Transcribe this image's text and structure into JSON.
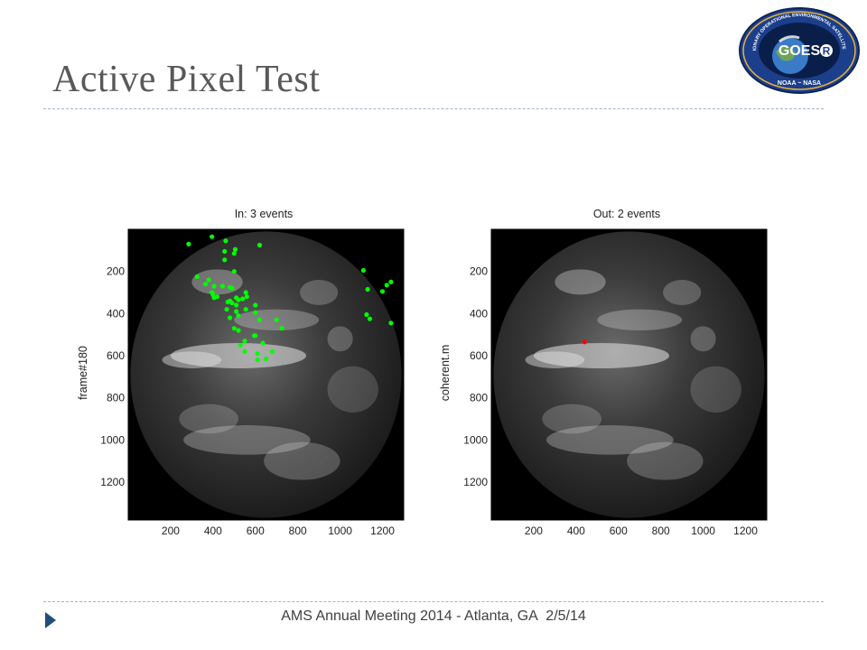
{
  "slide": {
    "title": "Active Pixel Test",
    "footer_meeting": "AMS Annual Meeting 2014 - Atlanta, GA",
    "footer_date": "2/5/14",
    "accent_color": "#1f4e79"
  },
  "logo": {
    "outer_text": "GEOSTATIONARY OPERATIONAL ENVIRONMENTAL SATELLITE R-SERIES",
    "center_text": "GOES",
    "center_suffix": "R",
    "bottom_text": "NOAA ~ NASA"
  },
  "chart_data": [
    {
      "type": "scatter",
      "title": "In: 3 events",
      "ylabel": "frame#180",
      "xlabel": "",
      "x_ticks": [
        "200",
        "400",
        "600",
        "800",
        "1000",
        "1200"
      ],
      "y_ticks": [
        "200",
        "400",
        "600",
        "800",
        "1000",
        "1200"
      ],
      "background": "earth disk image",
      "marker_color": "#00ff00",
      "points": [
        [
          395,
          35
        ],
        [
          460,
          55
        ],
        [
          285,
          70
        ],
        [
          620,
          75
        ],
        [
          455,
          105
        ],
        [
          505,
          95
        ],
        [
          500,
          115
        ],
        [
          455,
          145
        ],
        [
          500,
          200
        ],
        [
          325,
          225
        ],
        [
          380,
          240
        ],
        [
          365,
          260
        ],
        [
          405,
          270
        ],
        [
          445,
          270
        ],
        [
          490,
          280
        ],
        [
          480,
          275
        ],
        [
          555,
          300
        ],
        [
          395,
          300
        ],
        [
          400,
          310
        ],
        [
          405,
          325
        ],
        [
          420,
          320
        ],
        [
          470,
          345
        ],
        [
          480,
          340
        ],
        [
          510,
          325
        ],
        [
          520,
          335
        ],
        [
          490,
          350
        ],
        [
          510,
          360
        ],
        [
          540,
          330
        ],
        [
          560,
          320
        ],
        [
          600,
          360
        ],
        [
          465,
          380
        ],
        [
          510,
          390
        ],
        [
          555,
          380
        ],
        [
          600,
          395
        ],
        [
          520,
          410
        ],
        [
          480,
          420
        ],
        [
          620,
          430
        ],
        [
          700,
          430
        ],
        [
          725,
          470
        ],
        [
          500,
          470
        ],
        [
          520,
          480
        ],
        [
          600,
          505
        ],
        [
          550,
          530
        ],
        [
          530,
          550
        ],
        [
          550,
          580
        ],
        [
          610,
          590
        ],
        [
          680,
          580
        ],
        [
          650,
          615
        ],
        [
          610,
          620
        ],
        [
          1110,
          195
        ],
        [
          1240,
          250
        ],
        [
          1130,
          285
        ],
        [
          1220,
          265
        ],
        [
          1200,
          295
        ],
        [
          1125,
          405
        ],
        [
          1140,
          425
        ],
        [
          1240,
          445
        ],
        [
          595,
          505
        ],
        [
          635,
          540
        ]
      ],
      "xlim": [
        0,
        1300
      ],
      "ylim": [
        1380,
        0
      ]
    },
    {
      "type": "scatter",
      "title": "Out: 2 events",
      "ylabel": "coherent.m",
      "xlabel": "",
      "x_ticks": [
        "200",
        "400",
        "600",
        "800",
        "1000",
        "1200"
      ],
      "y_ticks": [
        "200",
        "400",
        "600",
        "800",
        "1000",
        "1200"
      ],
      "background": "earth disk image",
      "marker_color": "#ff0000",
      "points": [
        [
          440,
          535
        ]
      ],
      "xlim": [
        0,
        1300
      ],
      "ylim": [
        1380,
        0
      ]
    }
  ]
}
